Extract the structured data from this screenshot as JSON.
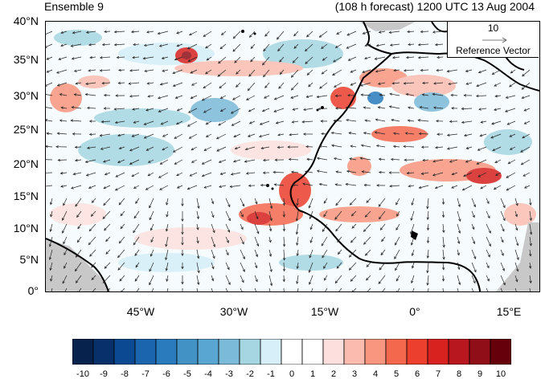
{
  "title_left": "Ensemble 9",
  "title_right": "(108 h forecast) 1200 UTC 13 Aug 2004",
  "y_axis": {
    "ticks": [
      "40°N",
      "35°N",
      "30°N",
      "25°N",
      "20°N",
      "15°N",
      "10°N",
      "5°N",
      "0°"
    ]
  },
  "x_axis": {
    "ticks": [
      "45°W",
      "30°W",
      "15°W",
      "0°",
      "15°E"
    ]
  },
  "reference_vector": {
    "value": "10",
    "label": "Reference Vector"
  },
  "colorbar": {
    "labels": [
      "-10",
      "-9",
      "-8",
      "-7",
      "-6",
      "-5",
      "-4",
      "-3",
      "-2",
      "-1",
      "0",
      "1",
      "2",
      "3",
      "4",
      "5",
      "6",
      "7",
      "8",
      "9",
      "10"
    ],
    "colors": [
      "#06224d",
      "#08306b",
      "#0b4a92",
      "#1a65ad",
      "#2a7bbd",
      "#4292c6",
      "#5aa6d3",
      "#7cbad9",
      "#a6d6e1",
      "#d6eff8",
      "#ffffff",
      "#ffffff",
      "#fde0dd",
      "#fbbcaf",
      "#f9967f",
      "#f4694e",
      "#ec3f2e",
      "#d7221f",
      "#b81720",
      "#900e17",
      "#66000b"
    ]
  }
}
